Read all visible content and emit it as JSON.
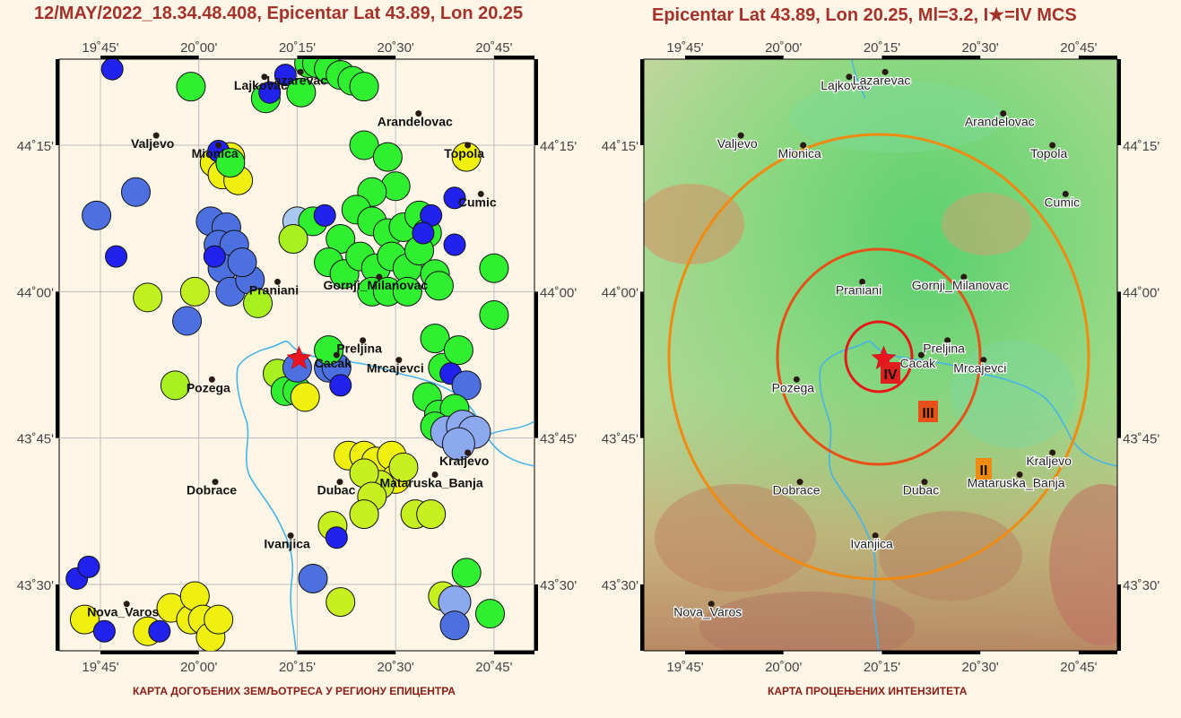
{
  "left_title": "12/MAY/2022_18.34.48.408, Epicentar Lat 43.89, Lon 20.25",
  "right_title": "Epicentar Lat 43.89, Lon 20.25, Ml=3.2, I★=IV MCS",
  "left_caption": "КАРТА ДОГОЂЕНИХ ЗЕМЉОТРЕСА У РЕГИОНУ ЕПИЦЕНТРА",
  "right_caption": "КАРТА ПРОЦЕЊЕНИХ ИНТЕНЗИТЕТА",
  "lon_ticks": [
    "19˚45'",
    "20˚00'",
    "20˚15'",
    "20˚30'",
    "20˚45'"
  ],
  "lat_ticks": [
    "44˚15'",
    "44˚00'",
    "43˚45'",
    "43˚30'"
  ],
  "towns": [
    {
      "name": "Lajkovac",
      "lon": 20.1667,
      "lat": 44.3667
    },
    {
      "name": "Lazarevac",
      "lon": 20.2583,
      "lat": 44.375
    },
    {
      "name": "Valjevo",
      "lon": 19.8917,
      "lat": 44.2667
    },
    {
      "name": "Mionica",
      "lon": 20.05,
      "lat": 44.25
    },
    {
      "name": "Arandelovac",
      "lon": 20.5583,
      "lat": 44.3042
    },
    {
      "name": "Topola",
      "lon": 20.6833,
      "lat": 44.25
    },
    {
      "name": "Cumic",
      "lon": 20.7167,
      "lat": 44.1667
    },
    {
      "name": "Praniani",
      "lon": 20.2,
      "lat": 44.0167
    },
    {
      "name": "Gornji_Milanovac",
      "lon": 20.4583,
      "lat": 44.025
    },
    {
      "name": "Preljina",
      "lon": 20.4167,
      "lat": 43.9167
    },
    {
      "name": "Cacak",
      "lon": 20.35,
      "lat": 43.8917
    },
    {
      "name": "Mrcajevci",
      "lon": 20.5083,
      "lat": 43.8833
    },
    {
      "name": "Pozega",
      "lon": 20.0333,
      "lat": 43.85
    },
    {
      "name": "Kraljevo",
      "lon": 20.6833,
      "lat": 43.725
    },
    {
      "name": "Mataruska_Banja",
      "lon": 20.6,
      "lat": 43.6875
    },
    {
      "name": "Dobrace",
      "lon": 20.0417,
      "lat": 43.675
    },
    {
      "name": "Dubac",
      "lon": 20.3583,
      "lat": 43.675
    },
    {
      "name": "Ivanjica",
      "lon": 20.2333,
      "lat": 43.5833
    },
    {
      "name": "Nova_Varos",
      "lon": 19.8167,
      "lat": 43.4667
    }
  ],
  "epicenter": {
    "lat": 43.89,
    "lon": 20.25,
    "magnitude_ml": 3.2,
    "intensity": "IV MCS"
  },
  "events": [
    {
      "lon": 19.78,
      "lat": 44.38,
      "color": "#2222ee"
    },
    {
      "lon": 19.74,
      "lat": 44.13,
      "color": "#4d70e0"
    },
    {
      "lon": 19.84,
      "lat": 44.17,
      "color": "#4d70e0"
    },
    {
      "lon": 19.79,
      "lat": 44.06,
      "color": "#2222ee"
    },
    {
      "lon": 19.87,
      "lat": 43.99,
      "color": "#c0f020"
    },
    {
      "lon": 19.99,
      "lat": 44.0,
      "color": "#c0f020"
    },
    {
      "lon": 19.97,
      "lat": 43.95,
      "color": "#4d70e0"
    },
    {
      "lon": 19.94,
      "lat": 43.84,
      "color": "#a8f020"
    },
    {
      "lon": 19.98,
      "lat": 44.35,
      "color": "#30ee30"
    },
    {
      "lon": 20.04,
      "lat": 44.22,
      "color": "#f0f010"
    },
    {
      "lon": 20.06,
      "lat": 44.2,
      "color": "#f0f010"
    },
    {
      "lon": 20.08,
      "lat": 44.23,
      "color": "#f0f010"
    },
    {
      "lon": 20.1,
      "lat": 44.19,
      "color": "#f0f010"
    },
    {
      "lon": 20.05,
      "lat": 44.24,
      "color": "#2222ee"
    },
    {
      "lon": 20.08,
      "lat": 44.22,
      "color": "#30ee30"
    },
    {
      "lon": 20.03,
      "lat": 44.12,
      "color": "#4d70e0"
    },
    {
      "lon": 20.07,
      "lat": 44.11,
      "color": "#4d70e0"
    },
    {
      "lon": 20.05,
      "lat": 44.08,
      "color": "#4d70e0"
    },
    {
      "lon": 20.09,
      "lat": 44.08,
      "color": "#4d70e0"
    },
    {
      "lon": 20.06,
      "lat": 44.04,
      "color": "#4d70e0"
    },
    {
      "lon": 20.08,
      "lat": 44.0,
      "color": "#4d70e0"
    },
    {
      "lon": 20.13,
      "lat": 44.02,
      "color": "#4d70e0"
    },
    {
      "lon": 20.11,
      "lat": 44.05,
      "color": "#4d70e0"
    },
    {
      "lon": 20.04,
      "lat": 44.06,
      "color": "#2222ee"
    },
    {
      "lon": 20.15,
      "lat": 43.98,
      "color": "#a8f020"
    },
    {
      "lon": 20.17,
      "lat": 44.33,
      "color": "#30ee30"
    },
    {
      "lon": 20.18,
      "lat": 44.34,
      "color": "#2222ee"
    },
    {
      "lon": 20.22,
      "lat": 44.37,
      "color": "#2222ee"
    },
    {
      "lon": 20.26,
      "lat": 44.34,
      "color": "#30ee30"
    },
    {
      "lon": 20.28,
      "lat": 44.39,
      "color": "#30ee30"
    },
    {
      "lon": 20.3,
      "lat": 44.39,
      "color": "#30ee30"
    },
    {
      "lon": 20.33,
      "lat": 44.38,
      "color": "#30ee30"
    },
    {
      "lon": 20.36,
      "lat": 44.37,
      "color": "#30ee30"
    },
    {
      "lon": 20.39,
      "lat": 44.36,
      "color": "#30ee30"
    },
    {
      "lon": 20.42,
      "lat": 44.35,
      "color": "#30ee30"
    },
    {
      "lon": 20.25,
      "lat": 44.12,
      "color": "#a8c8f0"
    },
    {
      "lon": 20.29,
      "lat": 44.12,
      "color": "#30ee30"
    },
    {
      "lon": 20.32,
      "lat": 44.13,
      "color": "#2222ee"
    },
    {
      "lon": 20.24,
      "lat": 44.09,
      "color": "#a8f020"
    },
    {
      "lon": 20.42,
      "lat": 44.25,
      "color": "#30ee30"
    },
    {
      "lon": 20.48,
      "lat": 44.23,
      "color": "#30ee30"
    },
    {
      "lon": 20.5,
      "lat": 44.18,
      "color": "#30ee30"
    },
    {
      "lon": 20.44,
      "lat": 44.17,
      "color": "#30ee30"
    },
    {
      "lon": 20.4,
      "lat": 44.14,
      "color": "#30ee30"
    },
    {
      "lon": 20.44,
      "lat": 44.12,
      "color": "#30ee30"
    },
    {
      "lon": 20.48,
      "lat": 44.1,
      "color": "#30ee30"
    },
    {
      "lon": 20.52,
      "lat": 44.11,
      "color": "#30ee30"
    },
    {
      "lon": 20.56,
      "lat": 44.13,
      "color": "#30ee30"
    },
    {
      "lon": 20.58,
      "lat": 44.1,
      "color": "#30ee30"
    },
    {
      "lon": 20.36,
      "lat": 44.09,
      "color": "#30ee30"
    },
    {
      "lon": 20.33,
      "lat": 44.05,
      "color": "#30ee30"
    },
    {
      "lon": 20.37,
      "lat": 44.03,
      "color": "#30ee30"
    },
    {
      "lon": 20.41,
      "lat": 44.06,
      "color": "#30ee30"
    },
    {
      "lon": 20.45,
      "lat": 44.04,
      "color": "#30ee30"
    },
    {
      "lon": 20.49,
      "lat": 44.06,
      "color": "#30ee30"
    },
    {
      "lon": 20.53,
      "lat": 44.04,
      "color": "#30ee30"
    },
    {
      "lon": 20.56,
      "lat": 44.07,
      "color": "#30ee30"
    },
    {
      "lon": 20.6,
      "lat": 44.03,
      "color": "#30ee30"
    },
    {
      "lon": 20.61,
      "lat": 44.01,
      "color": "#30ee30"
    },
    {
      "lon": 20.44,
      "lat": 44.0,
      "color": "#30ee30"
    },
    {
      "lon": 20.48,
      "lat": 44.0,
      "color": "#30ee30"
    },
    {
      "lon": 20.53,
      "lat": 44.0,
      "color": "#30ee30"
    },
    {
      "lon": 20.59,
      "lat": 44.13,
      "color": "#2222ee"
    },
    {
      "lon": 20.57,
      "lat": 44.1,
      "color": "#2222ee"
    },
    {
      "lon": 20.65,
      "lat": 44.16,
      "color": "#2222ee"
    },
    {
      "lon": 20.65,
      "lat": 44.08,
      "color": "#2222ee"
    },
    {
      "lon": 20.68,
      "lat": 44.23,
      "color": "#f0f010"
    },
    {
      "lon": 20.75,
      "lat": 44.04,
      "color": "#30ee30"
    },
    {
      "lon": 20.75,
      "lat": 43.96,
      "color": "#30ee30"
    },
    {
      "lon": 20.6,
      "lat": 43.92,
      "color": "#30ee30"
    },
    {
      "lon": 20.62,
      "lat": 43.87,
      "color": "#30ee30"
    },
    {
      "lon": 20.66,
      "lat": 43.9,
      "color": "#30ee30"
    },
    {
      "lon": 20.64,
      "lat": 43.86,
      "color": "#2222ee"
    },
    {
      "lon": 20.68,
      "lat": 43.84,
      "color": "#4d70e0"
    },
    {
      "lon": 20.58,
      "lat": 43.82,
      "color": "#30ee30"
    },
    {
      "lon": 20.61,
      "lat": 43.79,
      "color": "#30ee30"
    },
    {
      "lon": 20.65,
      "lat": 43.8,
      "color": "#30ee30"
    },
    {
      "lon": 20.6,
      "lat": 43.77,
      "color": "#30ee30"
    },
    {
      "lon": 20.63,
      "lat": 43.76,
      "color": "#8ca8ee"
    },
    {
      "lon": 20.67,
      "lat": 43.77,
      "color": "#8ca8ee"
    },
    {
      "lon": 20.7,
      "lat": 43.76,
      "color": "#8ca8ee"
    },
    {
      "lon": 20.66,
      "lat": 43.74,
      "color": "#8ca8ee"
    },
    {
      "lon": 20.2,
      "lat": 43.86,
      "color": "#a8f020"
    },
    {
      "lon": 20.22,
      "lat": 43.83,
      "color": "#30ee30"
    },
    {
      "lon": 20.25,
      "lat": 43.83,
      "color": "#30ee30"
    },
    {
      "lon": 20.27,
      "lat": 43.82,
      "color": "#f0f010"
    },
    {
      "lon": 20.25,
      "lat": 43.87,
      "color": "#4d70e0"
    },
    {
      "lon": 20.33,
      "lat": 43.87,
      "color": "#4d70e0"
    },
    {
      "lon": 20.35,
      "lat": 43.87,
      "color": "#4d70e0"
    },
    {
      "lon": 20.36,
      "lat": 43.84,
      "color": "#2222ee"
    },
    {
      "lon": 20.33,
      "lat": 43.9,
      "color": "#30ee30"
    },
    {
      "lon": 20.38,
      "lat": 43.72,
      "color": "#f0f010"
    },
    {
      "lon": 20.42,
      "lat": 43.72,
      "color": "#f0f010"
    },
    {
      "lon": 20.45,
      "lat": 43.71,
      "color": "#f0f010"
    },
    {
      "lon": 20.49,
      "lat": 43.72,
      "color": "#f0f010"
    },
    {
      "lon": 20.5,
      "lat": 43.68,
      "color": "#f0f010"
    },
    {
      "lon": 20.46,
      "lat": 43.67,
      "color": "#c8f020"
    },
    {
      "lon": 20.42,
      "lat": 43.69,
      "color": "#c8f020"
    },
    {
      "lon": 20.44,
      "lat": 43.65,
      "color": "#c8f020"
    },
    {
      "lon": 20.52,
      "lat": 43.7,
      "color": "#c8f020"
    },
    {
      "lon": 20.55,
      "lat": 43.62,
      "color": "#c8f020"
    },
    {
      "lon": 20.59,
      "lat": 43.62,
      "color": "#c8f020"
    },
    {
      "lon": 20.42,
      "lat": 43.62,
      "color": "#c8f020"
    },
    {
      "lon": 20.34,
      "lat": 43.6,
      "color": "#c8f020"
    },
    {
      "lon": 20.35,
      "lat": 43.58,
      "color": "#2222ee"
    },
    {
      "lon": 20.29,
      "lat": 43.51,
      "color": "#4d70e0"
    },
    {
      "lon": 20.36,
      "lat": 43.47,
      "color": "#c8f020"
    },
    {
      "lon": 20.68,
      "lat": 43.52,
      "color": "#30ee30"
    },
    {
      "lon": 20.62,
      "lat": 43.48,
      "color": "#c8f020"
    },
    {
      "lon": 20.65,
      "lat": 43.47,
      "color": "#8ca8ee"
    },
    {
      "lon": 20.74,
      "lat": 43.45,
      "color": "#30ee30"
    },
    {
      "lon": 20.65,
      "lat": 43.43,
      "color": "#4d70e0"
    },
    {
      "lon": 19.69,
      "lat": 43.51,
      "color": "#2222ee"
    },
    {
      "lon": 19.72,
      "lat": 43.53,
      "color": "#2222ee"
    },
    {
      "lon": 19.71,
      "lat": 43.44,
      "color": "#f0f010"
    },
    {
      "lon": 19.76,
      "lat": 43.42,
      "color": "#2222ee"
    },
    {
      "lon": 19.87,
      "lat": 43.42,
      "color": "#f0f010"
    },
    {
      "lon": 19.9,
      "lat": 43.42,
      "color": "#2222ee"
    },
    {
      "lon": 19.93,
      "lat": 43.46,
      "color": "#f0f010"
    },
    {
      "lon": 19.98,
      "lat": 43.44,
      "color": "#f0f010"
    },
    {
      "lon": 19.99,
      "lat": 43.48,
      "color": "#f0f010"
    },
    {
      "lon": 20.01,
      "lat": 43.44,
      "color": "#f0f010"
    },
    {
      "lon": 20.03,
      "lat": 43.41,
      "color": "#f0f010"
    },
    {
      "lon": 20.05,
      "lat": 43.44,
      "color": "#f0f010"
    }
  ]
}
